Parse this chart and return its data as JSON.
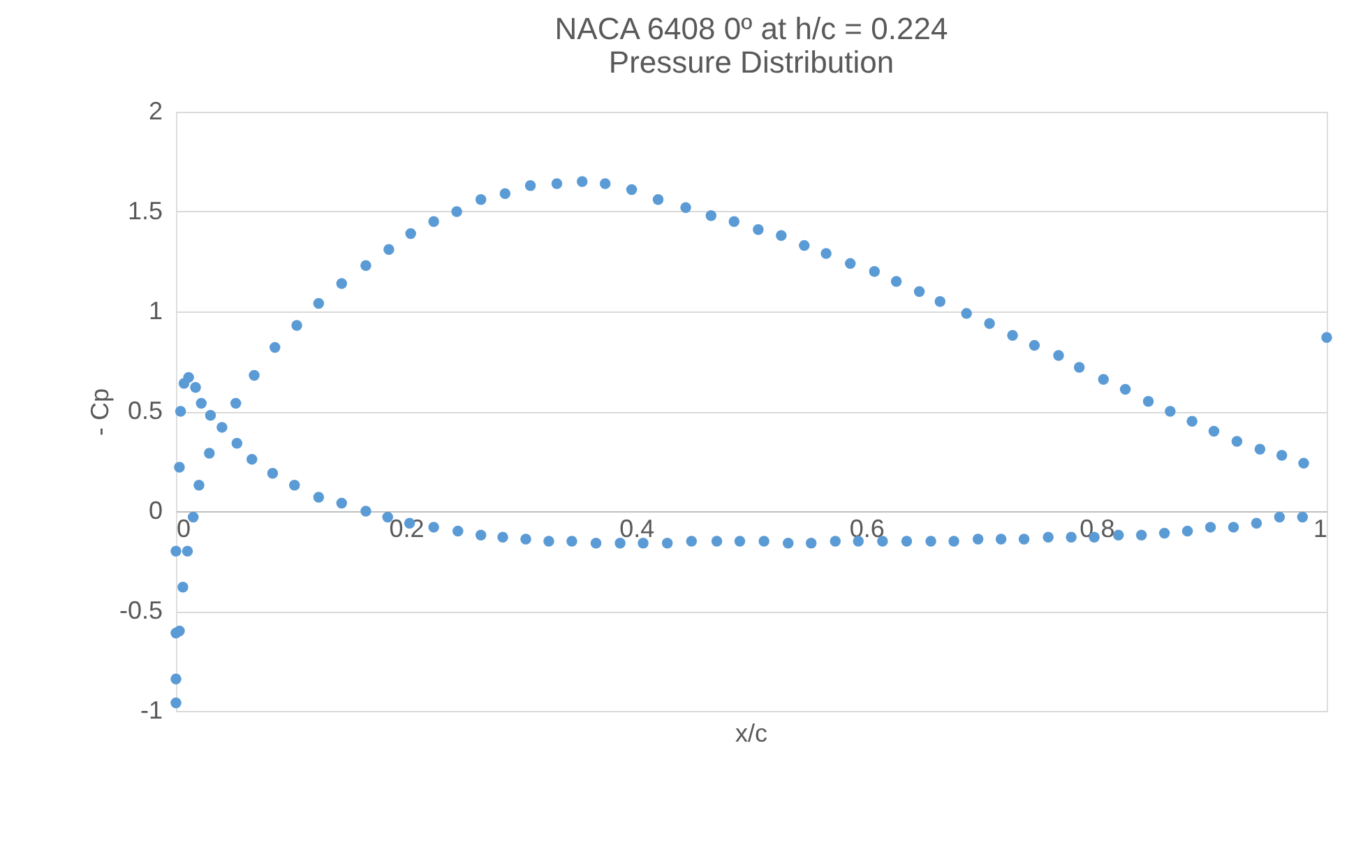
{
  "chart_data": {
    "type": "scatter",
    "title": "NACA 6408 0º at h/c = 0.224\nPressure Distribution",
    "xlabel": "x/c",
    "ylabel": "- Cp",
    "x": [
      0.0,
      0.0,
      0.0,
      0.003,
      0.006,
      0.0,
      0.01,
      0.015,
      0.02,
      0.029,
      0.052,
      0.068,
      0.086,
      0.105,
      0.124,
      0.144,
      0.165,
      0.185,
      0.204,
      0.224,
      0.244,
      0.265,
      0.286,
      0.308,
      0.331,
      0.353,
      0.373,
      0.396,
      0.419,
      0.443,
      0.465,
      0.485,
      0.506,
      0.526,
      0.546,
      0.565,
      0.586,
      0.607,
      0.626,
      0.646,
      0.664,
      0.687,
      0.707,
      0.727,
      0.746,
      0.767,
      0.785,
      0.806,
      0.825,
      0.845,
      0.864,
      0.883,
      0.902,
      0.922,
      0.942,
      0.961,
      0.98,
      1.0,
      0.003,
      0.004,
      0.007,
      0.011,
      0.017,
      0.022,
      0.03,
      0.04,
      0.053,
      0.066,
      0.084,
      0.103,
      0.124,
      0.144,
      0.165,
      0.184,
      0.203,
      0.224,
      0.245,
      0.265,
      0.284,
      0.304,
      0.324,
      0.344,
      0.365,
      0.386,
      0.406,
      0.427,
      0.448,
      0.47,
      0.49,
      0.511,
      0.532,
      0.552,
      0.573,
      0.593,
      0.614,
      0.635,
      0.656,
      0.676,
      0.697,
      0.717,
      0.737,
      0.758,
      0.778,
      0.798,
      0.819,
      0.839,
      0.859,
      0.879,
      0.899,
      0.919,
      0.939,
      0.959,
      0.979
    ],
    "values": [
      -0.96,
      -0.84,
      -0.61,
      -0.6,
      -0.38,
      -0.2,
      -0.2,
      -0.03,
      0.13,
      0.29,
      0.54,
      0.68,
      0.82,
      0.93,
      1.04,
      1.14,
      1.23,
      1.31,
      1.39,
      1.45,
      1.5,
      1.56,
      1.59,
      1.63,
      1.64,
      1.65,
      1.64,
      1.61,
      1.56,
      1.52,
      1.48,
      1.45,
      1.41,
      1.38,
      1.33,
      1.29,
      1.24,
      1.2,
      1.15,
      1.1,
      1.05,
      0.99,
      0.94,
      0.88,
      0.83,
      0.78,
      0.72,
      0.66,
      0.61,
      0.55,
      0.5,
      0.45,
      0.4,
      0.35,
      0.31,
      0.28,
      0.24,
      0.87,
      0.22,
      0.5,
      0.64,
      0.67,
      0.62,
      0.54,
      0.48,
      0.42,
      0.34,
      0.26,
      0.19,
      0.13,
      0.07,
      0.04,
      0.0,
      -0.03,
      -0.06,
      -0.08,
      -0.1,
      -0.12,
      -0.13,
      -0.14,
      -0.15,
      -0.15,
      -0.16,
      -0.16,
      -0.16,
      -0.16,
      -0.15,
      -0.15,
      -0.15,
      -0.15,
      -0.16,
      -0.16,
      -0.15,
      -0.15,
      -0.15,
      -0.15,
      -0.15,
      -0.15,
      -0.14,
      -0.14,
      -0.14,
      -0.13,
      -0.13,
      -0.13,
      -0.12,
      -0.12,
      -0.11,
      -0.1,
      -0.08,
      -0.08,
      -0.06,
      -0.03,
      -0.03
    ],
    "color": "#5b9bd5",
    "marker": "circle",
    "xlim": [
      0,
      1
    ],
    "xticks": [
      0,
      0.2,
      0.4,
      0.6,
      0.8,
      1
    ],
    "ylim": [
      -1,
      2
    ],
    "yticks": [
      -1,
      -0.5,
      0,
      0.5,
      1,
      1.5,
      2
    ],
    "grid": "y"
  }
}
